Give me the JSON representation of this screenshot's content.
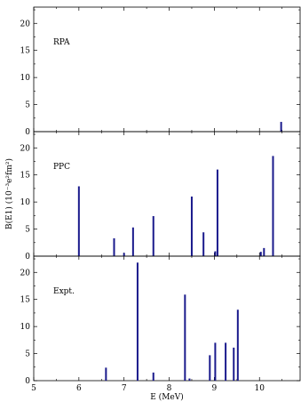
{
  "chart_data": {
    "type": "bar",
    "xlabel": "E (MeV)",
    "ylabel": "B(E1) (10⁻³e²fm²)",
    "xlim": [
      5,
      10.9
    ],
    "ylim": [
      0,
      23
    ],
    "x_ticks": [
      "5",
      "6",
      "7",
      "8",
      "9",
      "10"
    ],
    "y_ticks": [
      "0",
      "5",
      "10",
      "15",
      "20"
    ],
    "bar_color": "#1a1a8c",
    "panels": [
      {
        "label": "RPA",
        "bars": [
          {
            "x": 10.48,
            "y": 1.8
          }
        ]
      },
      {
        "label": "PPC",
        "bars": [
          {
            "x": 6.0,
            "y": 12.9
          },
          {
            "x": 6.78,
            "y": 3.3
          },
          {
            "x": 7.0,
            "y": 0.6
          },
          {
            "x": 7.2,
            "y": 5.3
          },
          {
            "x": 7.65,
            "y": 7.4
          },
          {
            "x": 8.5,
            "y": 11.0
          },
          {
            "x": 8.76,
            "y": 4.4
          },
          {
            "x": 9.02,
            "y": 0.9
          },
          {
            "x": 9.07,
            "y": 16.0
          },
          {
            "x": 10.03,
            "y": 0.8
          },
          {
            "x": 10.1,
            "y": 1.5
          },
          {
            "x": 10.3,
            "y": 18.5
          }
        ]
      },
      {
        "label": "Expt.",
        "bars": [
          {
            "x": 6.6,
            "y": 2.4
          },
          {
            "x": 7.3,
            "y": 21.8
          },
          {
            "x": 7.65,
            "y": 1.5
          },
          {
            "x": 8.35,
            "y": 15.9
          },
          {
            "x": 8.45,
            "y": 0.4
          },
          {
            "x": 8.9,
            "y": 4.7
          },
          {
            "x": 9.02,
            "y": 7.0
          },
          {
            "x": 9.25,
            "y": 7.0
          },
          {
            "x": 9.43,
            "y": 6.1
          },
          {
            "x": 9.52,
            "y": 13.1
          }
        ]
      }
    ]
  }
}
